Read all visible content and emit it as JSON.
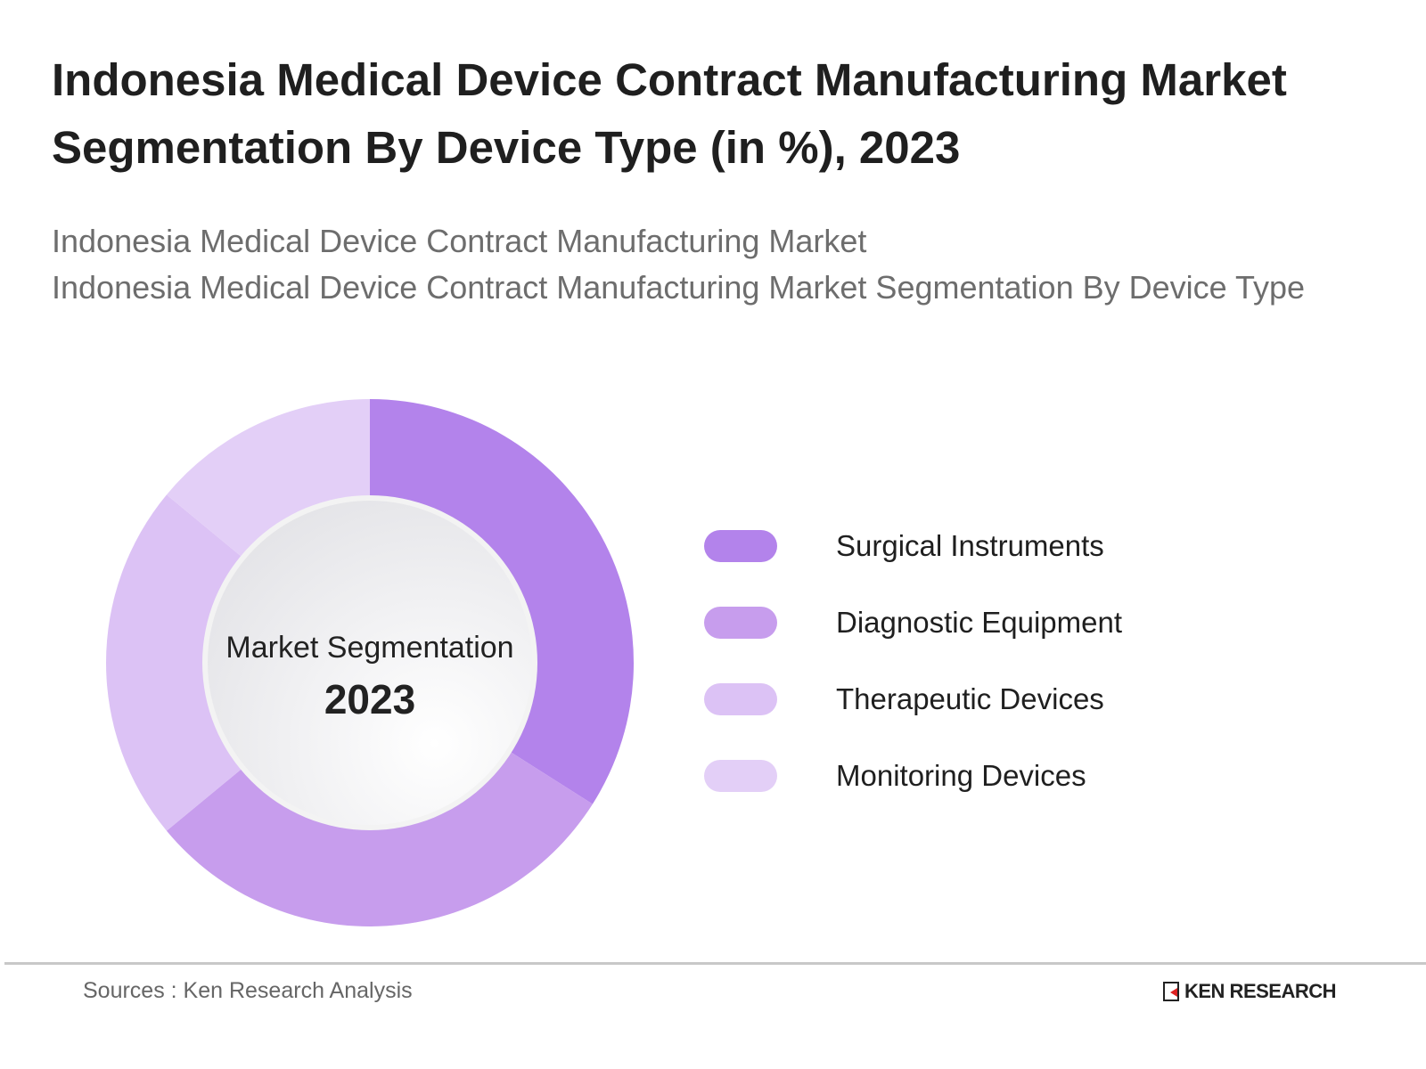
{
  "header": {
    "title": "Indonesia Medical Device Contract Manufacturing Market Segmentation By Device Type (in %), 2023",
    "subtitle_lines": [
      "Indonesia Medical Device Contract Manufacturing Market",
      "Indonesia Medical Device Contract Manufacturing Market Segmentation By Device Type"
    ]
  },
  "chart_data": {
    "type": "pie",
    "variant": "donut",
    "title": "Indonesia Medical Device Contract Manufacturing Market Segmentation By Device Type (in %), 2023",
    "center_label": "Market Segmentation",
    "center_value": "2023",
    "categories": [
      "Surgical Instruments",
      "Diagnostic Equipment",
      "Therapeutic Devices",
      "Monitoring Devices"
    ],
    "values": [
      34,
      30,
      22,
      14
    ],
    "colors": [
      "#b383eb",
      "#c79ded",
      "#dcc2f5",
      "#e3cff7"
    ],
    "legend_position": "right"
  },
  "footer": {
    "source": "Sources : Ken Research Analysis",
    "logo_text": "KEN RESEARCH"
  }
}
